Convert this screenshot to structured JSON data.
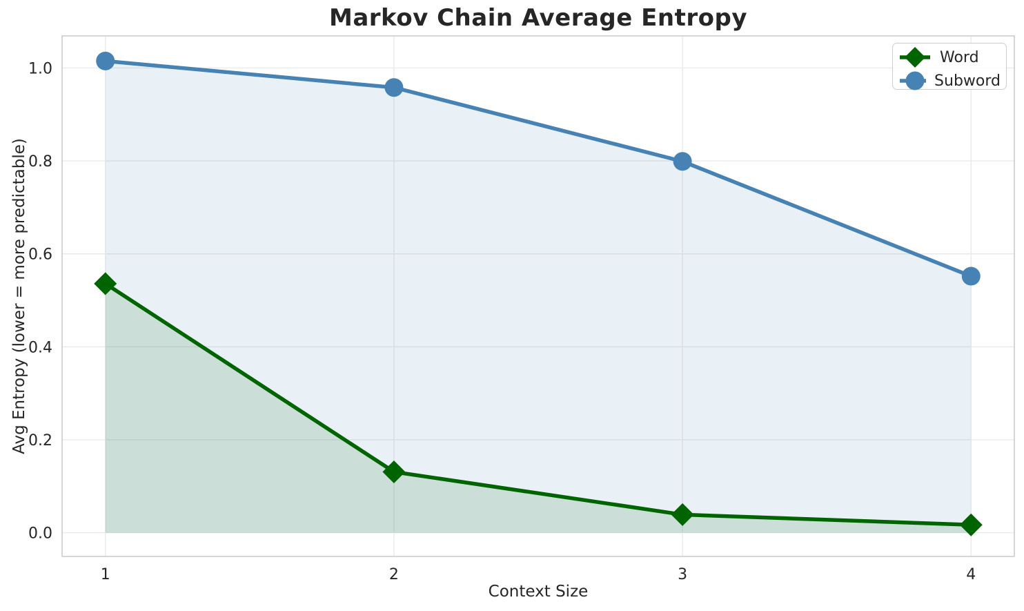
{
  "chart_data": {
    "type": "line",
    "title": "Markov Chain Average Entropy",
    "xlabel": "Context Size",
    "ylabel": "Avg Entropy (lower = more predictable)",
    "x": [
      1,
      2,
      3,
      4
    ],
    "series": [
      {
        "name": "Word",
        "values": [
          0.536,
          0.131,
          0.039,
          0.017
        ],
        "color": "#006400",
        "marker": "diamond",
        "area_fill": true
      },
      {
        "name": "Subword",
        "values": [
          1.015,
          0.958,
          0.799,
          0.552
        ],
        "color": "#4682b4",
        "marker": "circle",
        "area_fill": true
      }
    ],
    "xticks": [
      "1",
      "2",
      "3",
      "4"
    ],
    "yticks": [
      "0.0",
      "0.2",
      "0.4",
      "0.6",
      "0.8",
      "1.0"
    ],
    "xlim": [
      0.85,
      4.15
    ],
    "ylim": [
      -0.051,
      1.069
    ],
    "area_baseline": 0,
    "grid": true,
    "legend_position": "upper right"
  },
  "colors": {
    "grid": "#eaeaea",
    "spine": "#cccccc",
    "text": "#262626",
    "fill_opacity": 0.12,
    "background": "#ffffff"
  }
}
